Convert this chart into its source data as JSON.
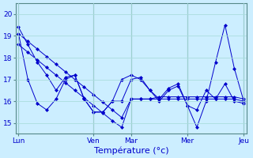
{
  "xlabel": "Température (°c)",
  "background_color": "#cceeff",
  "grid_color": "#aadddd",
  "line_color": "#0000cc",
  "ylim": [
    14.5,
    20.5
  ],
  "yticks": [
    15,
    16,
    17,
    18,
    19,
    20
  ],
  "x_tick_labels": [
    "Lun",
    "Ven",
    "Mar",
    "Mer",
    "Jeu"
  ],
  "x_tick_positions": [
    0,
    8,
    12,
    18,
    24
  ],
  "n_points": 25,
  "series": [
    [
      19.1,
      18.75,
      18.4,
      18.05,
      17.7,
      17.35,
      17.0,
      16.65,
      16.3,
      15.95,
      15.6,
      15.25,
      16.1,
      16.1,
      16.1,
      16.2,
      16.2,
      16.2,
      16.2,
      16.2,
      16.2,
      16.2,
      16.2,
      16.2,
      16.1
    ],
    [
      19.1,
      17.0,
      15.9,
      15.6,
      16.1,
      17.0,
      17.2,
      16.1,
      15.5,
      15.5,
      16.0,
      17.0,
      17.2,
      17.0,
      16.5,
      16.1,
      16.6,
      16.8,
      15.8,
      15.6,
      16.5,
      16.1,
      16.8,
      16.0,
      15.9
    ],
    [
      19.4,
      18.6,
      17.8,
      17.2,
      16.5,
      17.1,
      17.2,
      16.1,
      15.5,
      15.5,
      16.0,
      16.0,
      17.0,
      17.1,
      16.5,
      16.0,
      16.5,
      16.7,
      15.8,
      14.8,
      16.0,
      17.8,
      19.5,
      17.5,
      16.0
    ],
    [
      18.6,
      18.25,
      17.9,
      17.55,
      17.2,
      16.85,
      16.5,
      16.15,
      15.8,
      15.45,
      15.1,
      14.8,
      16.1,
      16.1,
      16.1,
      16.1,
      16.1,
      16.1,
      16.1,
      16.1,
      16.1,
      16.1,
      16.1,
      16.1,
      16.0
    ]
  ]
}
